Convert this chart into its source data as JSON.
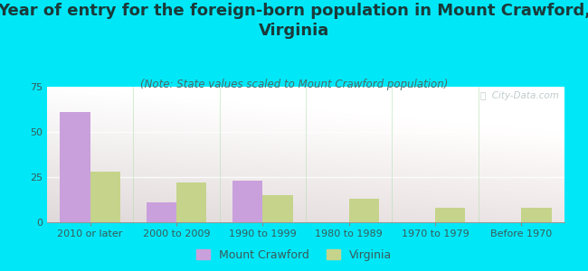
{
  "title": "Year of entry for the foreign-born population in Mount Crawford,\nVirginia",
  "subtitle": "(Note: State values scaled to Mount Crawford population)",
  "categories": [
    "2010 or later",
    "2000 to 2009",
    "1990 to 1999",
    "1980 to 1989",
    "1970 to 1979",
    "Before 1970"
  ],
  "mount_crawford": [
    61,
    11,
    23,
    0,
    0,
    0
  ],
  "virginia": [
    28,
    22,
    15,
    13,
    8,
    8
  ],
  "mount_crawford_color": "#c9a0dc",
  "virginia_color": "#c5d48a",
  "background_color": "#00e8f8",
  "ylim": [
    0,
    75
  ],
  "yticks": [
    0,
    25,
    50,
    75
  ],
  "bar_width": 0.35,
  "title_fontsize": 13,
  "subtitle_fontsize": 8.5,
  "tick_fontsize": 8,
  "legend_labels": [
    "Mount Crawford",
    "Virginia"
  ],
  "watermark": "ⓘ  City-Data.com",
  "title_color": "#1a3a3a",
  "subtitle_color": "#4a6a6a",
  "tick_color": "#3a5a5a",
  "grid_color": "#ffffff",
  "plot_bg_colors": [
    "#e8f5e8",
    "#f8fdf5",
    "#ffffff",
    "#f8fdf5",
    "#e8f5e8"
  ],
  "plot_bg_left": "#e0f0e0",
  "plot_bg_right": "#ffffff"
}
